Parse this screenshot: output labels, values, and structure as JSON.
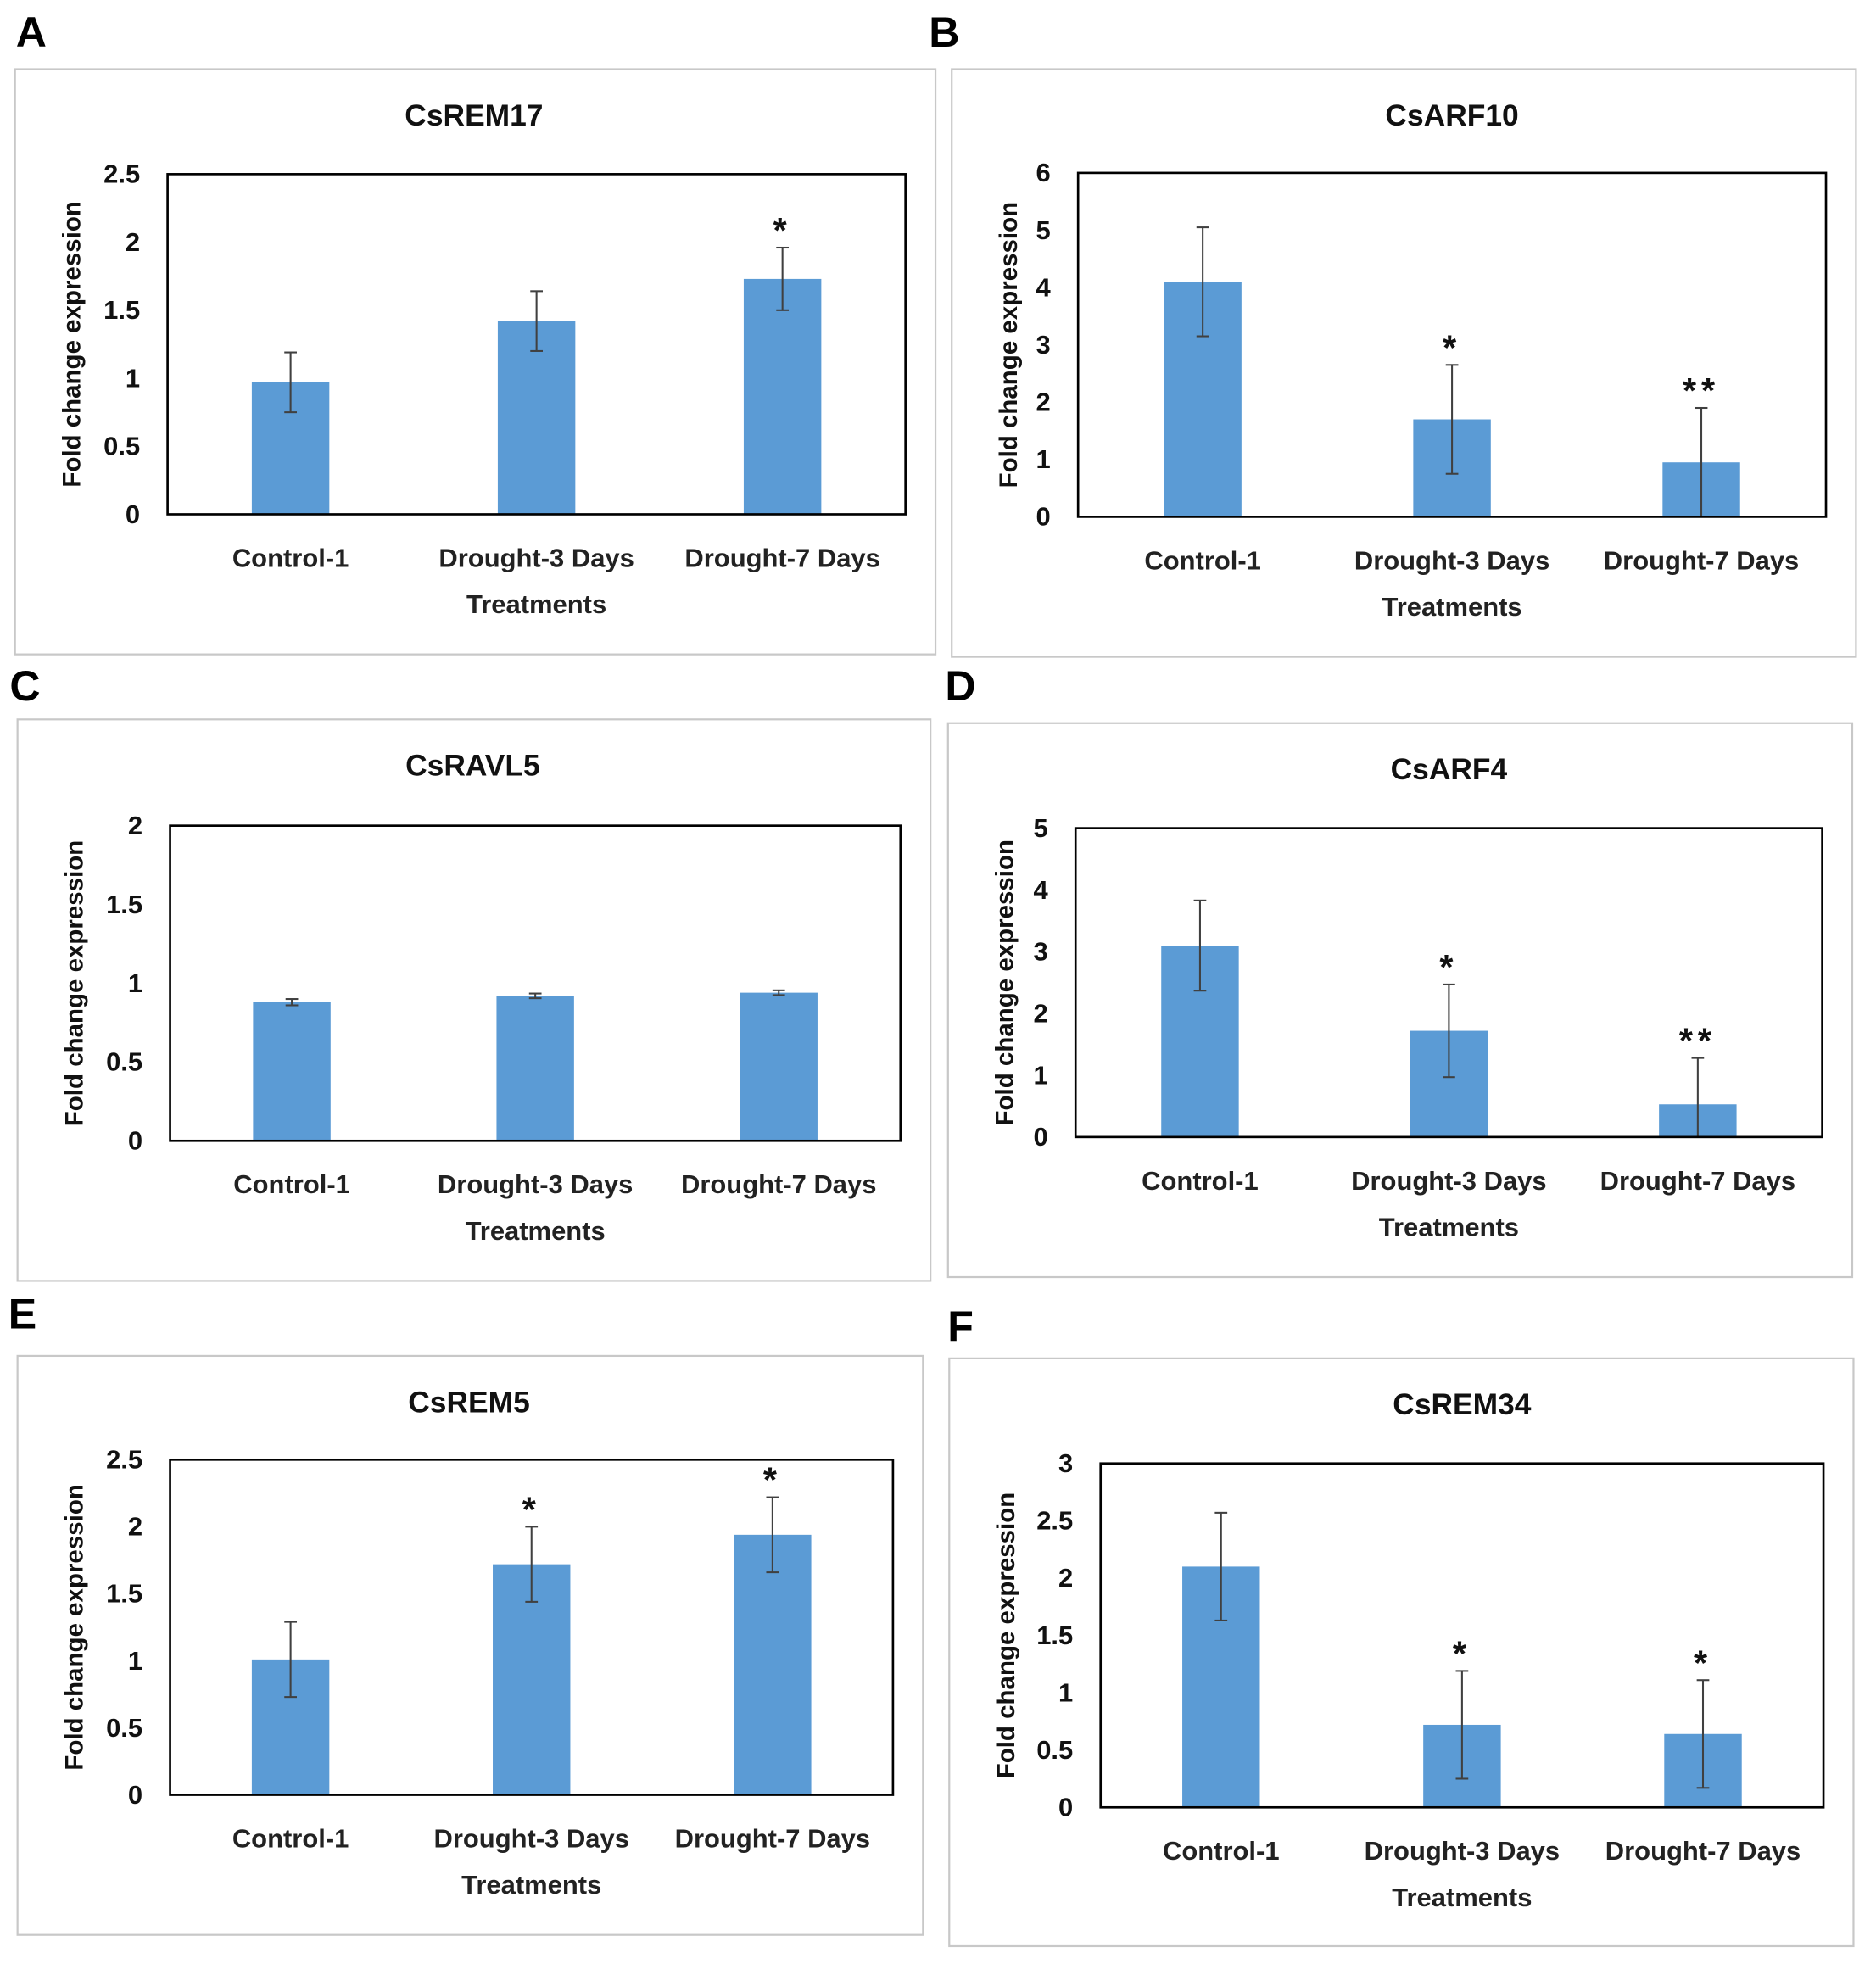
{
  "chart_data": [
    {
      "panel": "A",
      "type": "bar",
      "title": "CsREM17",
      "xlabel": "Treatments",
      "ylabel": "Fold change expression",
      "categories": [
        "Control-1",
        "Drought-3 Days",
        "Drought-7 Days"
      ],
      "values": [
        0.97,
        1.42,
        1.73
      ],
      "errors": [
        0.22,
        0.22,
        0.23
      ],
      "significance": [
        "",
        "",
        "*"
      ],
      "ylim": [
        0,
        2.5
      ],
      "yticks": [
        "0",
        "0.5",
        "1",
        "1.5",
        "2",
        "2.5"
      ],
      "grid": false
    },
    {
      "panel": "B",
      "type": "bar",
      "title": "CsARF10",
      "xlabel": "Treatments",
      "ylabel": "Fold change expression",
      "categories": [
        "Control-1",
        "Drought-3 Days",
        "Drought-7 Days"
      ],
      "values": [
        4.1,
        1.7,
        0.95
      ],
      "errors": [
        0.95,
        0.95,
        0.95
      ],
      "significance": [
        "",
        "*",
        "**"
      ],
      "ylim": [
        0,
        6
      ],
      "yticks": [
        "0",
        "1",
        "2",
        "3",
        "4",
        "5",
        "6"
      ],
      "grid": false
    },
    {
      "panel": "C",
      "type": "bar",
      "title": "CsRAVL5",
      "xlabel": "Treatments",
      "ylabel": "Fold change expression",
      "categories": [
        "Control-1",
        "Drought-3 Days",
        "Drought-7 Days"
      ],
      "values": [
        0.88,
        0.92,
        0.94
      ],
      "errors": [
        0.02,
        0.015,
        0.015
      ],
      "significance": [
        "",
        "",
        ""
      ],
      "ylim": [
        0,
        2
      ],
      "yticks": [
        "0",
        "0.5",
        "1",
        "1.5",
        "2"
      ],
      "grid": false
    },
    {
      "panel": "D",
      "type": "bar",
      "title": "CsARF4",
      "xlabel": "Treatments",
      "ylabel": "Fold change expression",
      "categories": [
        "Control-1",
        "Drought-3 Days",
        "Drought-7 Days"
      ],
      "values": [
        3.1,
        1.72,
        0.53
      ],
      "errors": [
        0.73,
        0.75,
        0.75
      ],
      "significance": [
        "",
        "*",
        "**"
      ],
      "ylim": [
        0,
        5
      ],
      "yticks": [
        "0",
        "1",
        "2",
        "3",
        "4",
        "5"
      ],
      "grid": false
    },
    {
      "panel": "E",
      "type": "bar",
      "title": "CsREM5",
      "xlabel": "Treatments",
      "ylabel": "Fold change expression",
      "categories": [
        "Control-1",
        "Drought-3 Days",
        "Drought-7 Days"
      ],
      "values": [
        1.01,
        1.72,
        1.94
      ],
      "errors": [
        0.28,
        0.28,
        0.28
      ],
      "significance": [
        "",
        "*",
        "*"
      ],
      "ylim": [
        0,
        2.5
      ],
      "yticks": [
        "0",
        "0.5",
        "1",
        "1.5",
        "2",
        "2.5"
      ],
      "grid": false
    },
    {
      "panel": "F",
      "type": "bar",
      "title": "CsREM34",
      "xlabel": "Treatments",
      "ylabel": "Fold change expression",
      "categories": [
        "Control-1",
        "Drought-3 Days",
        "Drought-7 Days"
      ],
      "values": [
        2.1,
        0.72,
        0.64
      ],
      "errors": [
        0.47,
        0.47,
        0.47
      ],
      "significance": [
        "",
        "*",
        "*"
      ],
      "ylim": [
        0,
        3
      ],
      "yticks": [
        "0",
        "0.5",
        "1",
        "1.5",
        "2",
        "2.5",
        "3"
      ],
      "grid": false
    }
  ],
  "colors": {
    "bar": "#5b9bd5",
    "error_bar": "#404040"
  }
}
